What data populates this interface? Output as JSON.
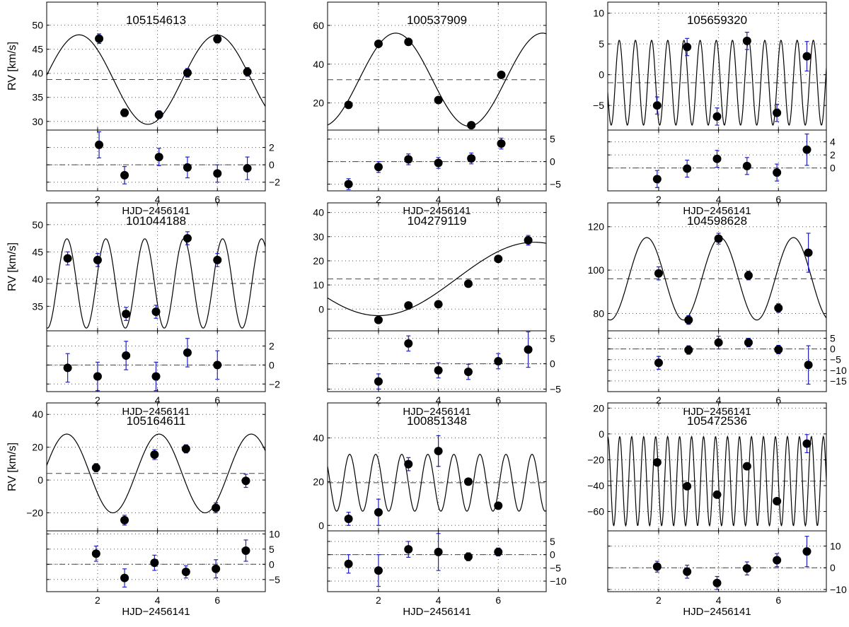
{
  "figure": {
    "xlabel": "HJD−2456141",
    "ylabel": "RV [km/s]",
    "resid_ylabel": ""
  },
  "colors": {
    "errorbar": "#2020c0",
    "marker": "#000000",
    "fit": "#000000",
    "grid": "#555555",
    "mean_line": "#444444"
  },
  "chart_data": [
    {
      "type": "scatter",
      "title": "105154613",
      "xlim": [
        0.3,
        7.6
      ],
      "ylim": [
        28.2,
        54.8
      ],
      "xticks": [
        2,
        4,
        6
      ],
      "yticks": [
        30,
        35,
        40,
        45,
        50
      ],
      "mean": 38.7,
      "fit": {
        "offset": 38.7,
        "amplitude": 9.3,
        "period": 4.6,
        "phase_x": 0.23
      },
      "points": [
        {
          "x": 2.05,
          "y": 47.2,
          "err": 1.0
        },
        {
          "x": 2.9,
          "y": 31.8,
          "err": 0.8
        },
        {
          "x": 4.05,
          "y": 31.4,
          "err": 0.8
        },
        {
          "x": 5.0,
          "y": 40.1,
          "err": 0.9
        },
        {
          "x": 6.0,
          "y": 47.1,
          "err": 0.8
        },
        {
          "x": 7.0,
          "y": 40.3,
          "err": 0.9
        }
      ],
      "resid": {
        "ylim": [
          -3.0,
          4.0
        ],
        "yticks": [
          -2,
          0,
          2
        ],
        "points": [
          {
            "x": 2.05,
            "y": 2.3,
            "err": 1.5
          },
          {
            "x": 2.9,
            "y": -1.2,
            "err": 1.0
          },
          {
            "x": 4.05,
            "y": 0.9,
            "err": 1.0
          },
          {
            "x": 5.0,
            "y": -0.3,
            "err": 1.2
          },
          {
            "x": 6.0,
            "y": -1.0,
            "err": 1.0
          },
          {
            "x": 7.0,
            "y": -0.4,
            "err": 1.3
          }
        ]
      }
    },
    {
      "type": "scatter",
      "title": "100537909",
      "xlim": [
        0.3,
        7.6
      ],
      "ylim": [
        6.0,
        72.0
      ],
      "xticks": [
        2,
        4,
        6
      ],
      "yticks": [
        20,
        40,
        60
      ],
      "mean": 32.0,
      "fit": {
        "offset": 32.0,
        "amplitude": 24.0,
        "period": 4.9,
        "phase_x": 1.35
      },
      "points": [
        {
          "x": 1.0,
          "y": 19.0,
          "err": 0.8
        },
        {
          "x": 2.0,
          "y": 50.5,
          "err": 0.8
        },
        {
          "x": 3.0,
          "y": 51.5,
          "err": 0.8
        },
        {
          "x": 4.0,
          "y": 21.5,
          "err": 0.8
        },
        {
          "x": 5.1,
          "y": 8.5,
          "err": 0.8
        },
        {
          "x": 6.1,
          "y": 34.5,
          "err": 0.8
        }
      ],
      "resid": {
        "ylim": [
          -6.5,
          7.0
        ],
        "yticks": [
          -5,
          0,
          5
        ],
        "points": [
          {
            "x": 1.0,
            "y": -5.0,
            "err": 1.2
          },
          {
            "x": 2.0,
            "y": -1.2,
            "err": 1.2
          },
          {
            "x": 3.0,
            "y": 0.5,
            "err": 1.2
          },
          {
            "x": 4.0,
            "y": -0.3,
            "err": 1.2
          },
          {
            "x": 5.1,
            "y": 0.7,
            "err": 1.2
          },
          {
            "x": 6.1,
            "y": 4.0,
            "err": 1.2
          }
        ]
      }
    },
    {
      "type": "scatter",
      "title": "105659320",
      "xlim": [
        0.3,
        7.6
      ],
      "ylim": [
        -9.0,
        11.8
      ],
      "xticks": [
        2,
        4,
        6
      ],
      "yticks": [
        -5,
        0,
        5,
        10
      ],
      "mean": -1.3,
      "fit": {
        "offset": -1.3,
        "amplitude": 6.9,
        "period": 0.54,
        "phase_x": 0.55
      },
      "points": [
        {
          "x": 1.95,
          "y": -5.0,
          "err": 1.4
        },
        {
          "x": 2.95,
          "y": 4.5,
          "err": 1.4
        },
        {
          "x": 3.95,
          "y": -6.8,
          "err": 1.4
        },
        {
          "x": 4.95,
          "y": 5.5,
          "err": 1.4
        },
        {
          "x": 5.95,
          "y": -6.2,
          "err": 1.4
        },
        {
          "x": 6.95,
          "y": 3.0,
          "err": 2.4
        }
      ],
      "resid": {
        "ylim": [
          -3.5,
          5.8
        ],
        "yticks": [
          0,
          2,
          4
        ],
        "points": [
          {
            "x": 1.95,
            "y": -1.7,
            "err": 1.3
          },
          {
            "x": 2.95,
            "y": -0.1,
            "err": 1.3
          },
          {
            "x": 3.95,
            "y": 1.4,
            "err": 1.3
          },
          {
            "x": 4.95,
            "y": 0.3,
            "err": 1.3
          },
          {
            "x": 5.95,
            "y": -0.7,
            "err": 1.3
          },
          {
            "x": 6.95,
            "y": 2.8,
            "err": 2.4
          }
        ]
      }
    },
    {
      "type": "scatter",
      "title": "101044188",
      "xlim": [
        0.3,
        7.6
      ],
      "ylim": [
        30.5,
        54.0
      ],
      "xticks": [
        2,
        4,
        6
      ],
      "yticks": [
        35,
        40,
        45,
        50
      ],
      "mean": 39.2,
      "fit": {
        "offset": 39.2,
        "amplitude": 8.2,
        "period": 1.3,
        "phase_x": 0.65
      },
      "points": [
        {
          "x": 1.0,
          "y": 43.8,
          "err": 1.2
        },
        {
          "x": 2.0,
          "y": 43.5,
          "err": 1.2
        },
        {
          "x": 2.95,
          "y": 33.6,
          "err": 1.2
        },
        {
          "x": 3.95,
          "y": 34.0,
          "err": 1.2
        },
        {
          "x": 5.0,
          "y": 47.5,
          "err": 1.2
        },
        {
          "x": 6.0,
          "y": 43.5,
          "err": 1.2
        }
      ],
      "resid": {
        "ylim": [
          -2.8,
          3.6
        ],
        "yticks": [
          -2,
          0,
          2
        ],
        "points": [
          {
            "x": 1.0,
            "y": -0.3,
            "err": 1.5
          },
          {
            "x": 2.0,
            "y": -1.2,
            "err": 1.5
          },
          {
            "x": 2.95,
            "y": 1.0,
            "err": 1.5
          },
          {
            "x": 3.95,
            "y": -1.2,
            "err": 1.5
          },
          {
            "x": 5.0,
            "y": 1.3,
            "err": 1.5
          },
          {
            "x": 6.0,
            "y": 0.0,
            "err": 1.5
          }
        ]
      }
    },
    {
      "type": "scatter",
      "title": "104279119",
      "xlim": [
        0.3,
        7.6
      ],
      "ylim": [
        -9.0,
        44.0
      ],
      "xticks": [
        2,
        4,
        6
      ],
      "yticks": [
        0,
        10,
        20,
        30,
        40
      ],
      "mean": 12.5,
      "fit": {
        "offset": 12.5,
        "amplitude": 15.2,
        "period": 10.4,
        "phase_x": 4.6
      },
      "points": [
        {
          "x": 2.0,
          "y": -4.5,
          "err": 0.8
        },
        {
          "x": 3.0,
          "y": 1.5,
          "err": 0.8
        },
        {
          "x": 4.0,
          "y": 2.0,
          "err": 0.8
        },
        {
          "x": 5.0,
          "y": 10.5,
          "err": 0.8
        },
        {
          "x": 6.0,
          "y": 20.8,
          "err": 0.8
        },
        {
          "x": 7.0,
          "y": 28.5,
          "err": 2.0
        }
      ],
      "resid": {
        "ylim": [
          -5.5,
          6.5
        ],
        "yticks": [
          -5,
          0,
          5
        ],
        "points": [
          {
            "x": 2.0,
            "y": -3.5,
            "err": 1.5
          },
          {
            "x": 3.0,
            "y": 4.0,
            "err": 1.5
          },
          {
            "x": 4.0,
            "y": -1.3,
            "err": 1.5
          },
          {
            "x": 5.0,
            "y": -1.6,
            "err": 1.5
          },
          {
            "x": 6.0,
            "y": 0.5,
            "err": 1.5
          },
          {
            "x": 7.0,
            "y": 2.8,
            "err": 3.5
          }
        ]
      }
    },
    {
      "type": "scatter",
      "title": "104598628",
      "xlim": [
        0.3,
        7.6
      ],
      "ylim": [
        72.0,
        131.0
      ],
      "xticks": [
        2,
        4,
        6
      ],
      "yticks": [
        80,
        100,
        120
      ],
      "mean": 96.0,
      "fit": {
        "offset": 96.0,
        "amplitude": 19.0,
        "period": 2.45,
        "phase_x": 0.99
      },
      "points": [
        {
          "x": 2.0,
          "y": 98.5,
          "err": 3.0
        },
        {
          "x": 3.0,
          "y": 77.0,
          "err": 2.0
        },
        {
          "x": 4.0,
          "y": 114.5,
          "err": 2.5
        },
        {
          "x": 5.0,
          "y": 97.5,
          "err": 2.0
        },
        {
          "x": 6.0,
          "y": 82.5,
          "err": 2.0
        },
        {
          "x": 7.0,
          "y": 108.0,
          "err": 9.0
        }
      ],
      "resid": {
        "ylim": [
          -20.0,
          8.5
        ],
        "yticks": [
          -15,
          -10,
          -5,
          0,
          5
        ],
        "points": [
          {
            "x": 2.0,
            "y": -6.5,
            "err": 3.0
          },
          {
            "x": 3.0,
            "y": -0.5,
            "err": 2.0
          },
          {
            "x": 4.0,
            "y": 3.0,
            "err": 3.0
          },
          {
            "x": 5.0,
            "y": 3.0,
            "err": 2.0
          },
          {
            "x": 6.0,
            "y": -0.3,
            "err": 2.0
          },
          {
            "x": 7.0,
            "y": -7.5,
            "err": 9.0
          }
        ]
      }
    },
    {
      "type": "scatter",
      "title": "105164611",
      "xlim": [
        0.3,
        7.6
      ],
      "ylim": [
        -31.0,
        47.0
      ],
      "xticks": [
        2,
        4,
        6
      ],
      "yticks": [
        -20,
        0,
        20,
        40
      ],
      "mean": 4.0,
      "fit": {
        "offset": 4.0,
        "amplitude": 24.0,
        "period": 3.08,
        "phase_x": 0.2
      },
      "points": [
        {
          "x": 1.95,
          "y": 7.5,
          "err": 2.5
        },
        {
          "x": 2.9,
          "y": -24.5,
          "err": 3.0
        },
        {
          "x": 3.9,
          "y": 15.5,
          "err": 3.0
        },
        {
          "x": 4.95,
          "y": 19.0,
          "err": 2.5
        },
        {
          "x": 5.95,
          "y": -17.0,
          "err": 3.0
        },
        {
          "x": 6.95,
          "y": -0.5,
          "err": 4.0
        }
      ],
      "resid": {
        "ylim": [
          -9.0,
          11.0
        ],
        "yticks": [
          -5,
          0,
          5,
          10
        ],
        "points": [
          {
            "x": 1.95,
            "y": 3.5,
            "err": 2.5
          },
          {
            "x": 2.9,
            "y": -4.5,
            "err": 3.0
          },
          {
            "x": 3.9,
            "y": 0.5,
            "err": 2.5
          },
          {
            "x": 4.95,
            "y": -2.5,
            "err": 2.0
          },
          {
            "x": 5.95,
            "y": -1.5,
            "err": 3.0
          },
          {
            "x": 6.95,
            "y": 4.5,
            "err": 3.5
          }
        ]
      }
    },
    {
      "type": "scatter",
      "title": "100851348",
      "xlim": [
        0.3,
        7.6
      ],
      "ylim": [
        -2.5,
        56.0
      ],
      "xticks": [
        2,
        4,
        6
      ],
      "yticks": [
        0,
        20,
        40
      ],
      "mean": 19.5,
      "fit": {
        "offset": 19.5,
        "amplitude": 13.0,
        "period": 0.87,
        "phase_x": 0.82
      },
      "points": [
        {
          "x": 1.0,
          "y": 3.0,
          "err": 3.0
        },
        {
          "x": 2.0,
          "y": 6.0,
          "err": 6.0
        },
        {
          "x": 3.0,
          "y": 28.0,
          "err": 3.0
        },
        {
          "x": 4.0,
          "y": 34.0,
          "err": 7.0
        },
        {
          "x": 5.0,
          "y": 20.0,
          "err": 1.5
        },
        {
          "x": 6.0,
          "y": 9.0,
          "err": 1.5
        }
      ],
      "resid": {
        "ylim": [
          -14.0,
          9.0
        ],
        "yticks": [
          -10,
          -5,
          0,
          5
        ],
        "points": [
          {
            "x": 1.0,
            "y": -3.5,
            "err": 3.5
          },
          {
            "x": 2.0,
            "y": -6.0,
            "err": 6.0
          },
          {
            "x": 3.0,
            "y": 2.0,
            "err": 3.0
          },
          {
            "x": 4.0,
            "y": 1.0,
            "err": 7.0
          },
          {
            "x": 5.0,
            "y": -0.8,
            "err": 1.5
          },
          {
            "x": 6.0,
            "y": 1.0,
            "err": 1.5
          }
        ]
      }
    },
    {
      "type": "scatter",
      "title": "105472536",
      "xlim": [
        0.3,
        7.6
      ],
      "ylim": [
        -75.0,
        24.0
      ],
      "xticks": [
        2,
        4,
        6
      ],
      "yticks": [
        -60,
        -40,
        -20,
        0,
        20
      ],
      "mean": -36.5,
      "fit": {
        "offset": -36.5,
        "amplitude": 34.5,
        "period": 0.4,
        "phase_x": 0.6
      },
      "points": [
        {
          "x": 1.95,
          "y": -22.0,
          "err": 2.0
        },
        {
          "x": 2.95,
          "y": -40.5,
          "err": 2.5
        },
        {
          "x": 3.95,
          "y": -47.0,
          "err": 2.5
        },
        {
          "x": 4.95,
          "y": -25.0,
          "err": 2.5
        },
        {
          "x": 5.95,
          "y": -52.0,
          "err": 2.0
        },
        {
          "x": 6.95,
          "y": -7.5,
          "err": 7.0
        }
      ],
      "resid": {
        "ylim": [
          -11.0,
          17.0
        ],
        "yticks": [
          -10,
          0,
          10
        ],
        "points": [
          {
            "x": 1.95,
            "y": 0.5,
            "err": 2.5
          },
          {
            "x": 2.95,
            "y": -1.8,
            "err": 3.0
          },
          {
            "x": 3.95,
            "y": -7.0,
            "err": 3.0
          },
          {
            "x": 4.95,
            "y": -0.3,
            "err": 3.0
          },
          {
            "x": 5.95,
            "y": 3.5,
            "err": 3.0
          },
          {
            "x": 6.95,
            "y": 7.5,
            "err": 7.0
          }
        ]
      }
    }
  ]
}
